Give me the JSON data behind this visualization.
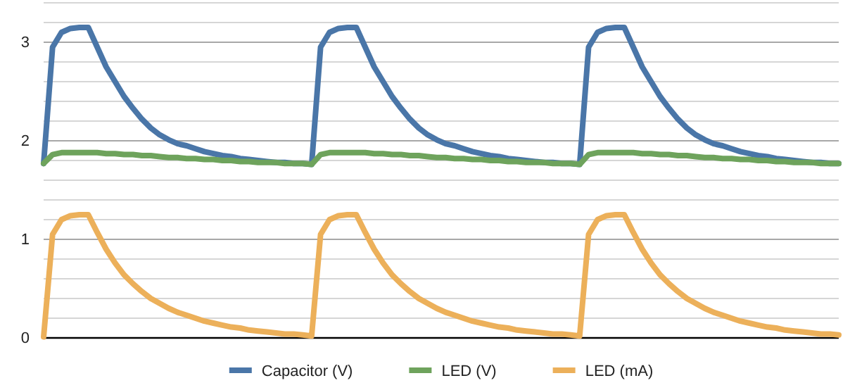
{
  "chart_data": {
    "type": "line",
    "categories": [
      null,
      null,
      null,
      null,
      null,
      null,
      null,
      null,
      null,
      null,
      null,
      null,
      null,
      null,
      null,
      null,
      null,
      null,
      null,
      null,
      null,
      null,
      null,
      null,
      null,
      null,
      null,
      null,
      null,
      null,
      null,
      null,
      null,
      null,
      null,
      null,
      null,
      null,
      null,
      null,
      null,
      null,
      null,
      null,
      null,
      null,
      null,
      null,
      null,
      null,
      null,
      null,
      null,
      null,
      null,
      null,
      null,
      null,
      null,
      null,
      null,
      null,
      null,
      null,
      null,
      null,
      null,
      null,
      null,
      null,
      null,
      null,
      null,
      null,
      null,
      null,
      null,
      null,
      null,
      null,
      null,
      null,
      null,
      null,
      null,
      null,
      null,
      null,
      null,
      null
    ],
    "series": [
      {
        "name": "Capacitor (V)",
        "color": "#4a76a8",
        "values": [
          1.77,
          2.95,
          3.1,
          3.14,
          3.15,
          3.15,
          2.95,
          2.75,
          2.6,
          2.45,
          2.33,
          2.22,
          2.13,
          2.06,
          2.01,
          1.97,
          1.95,
          1.92,
          1.89,
          1.87,
          1.85,
          1.84,
          1.82,
          1.81,
          1.8,
          1.79,
          1.78,
          1.78,
          1.77,
          1.77,
          1.76,
          2.95,
          3.1,
          3.14,
          3.15,
          3.15,
          2.95,
          2.75,
          2.6,
          2.45,
          2.33,
          2.22,
          2.13,
          2.06,
          2.01,
          1.97,
          1.95,
          1.92,
          1.89,
          1.87,
          1.85,
          1.84,
          1.82,
          1.81,
          1.8,
          1.79,
          1.78,
          1.78,
          1.77,
          1.77,
          1.76,
          2.95,
          3.1,
          3.14,
          3.15,
          3.15,
          2.95,
          2.75,
          2.6,
          2.45,
          2.33,
          2.22,
          2.13,
          2.06,
          2.01,
          1.97,
          1.95,
          1.92,
          1.89,
          1.87,
          1.85,
          1.84,
          1.82,
          1.81,
          1.8,
          1.79,
          1.78,
          1.78,
          1.77,
          1.77
        ]
      },
      {
        "name": "LED (V)",
        "color": "#6ea35c",
        "values": [
          1.77,
          1.86,
          1.88,
          1.88,
          1.88,
          1.88,
          1.88,
          1.87,
          1.87,
          1.86,
          1.86,
          1.85,
          1.85,
          1.84,
          1.83,
          1.83,
          1.82,
          1.82,
          1.81,
          1.81,
          1.8,
          1.8,
          1.79,
          1.79,
          1.78,
          1.78,
          1.78,
          1.77,
          1.77,
          1.77,
          1.76,
          1.86,
          1.88,
          1.88,
          1.88,
          1.88,
          1.88,
          1.87,
          1.87,
          1.86,
          1.86,
          1.85,
          1.85,
          1.84,
          1.83,
          1.83,
          1.82,
          1.82,
          1.81,
          1.81,
          1.8,
          1.8,
          1.79,
          1.79,
          1.78,
          1.78,
          1.78,
          1.77,
          1.77,
          1.77,
          1.76,
          1.86,
          1.88,
          1.88,
          1.88,
          1.88,
          1.88,
          1.87,
          1.87,
          1.86,
          1.86,
          1.85,
          1.85,
          1.84,
          1.83,
          1.83,
          1.82,
          1.82,
          1.81,
          1.81,
          1.8,
          1.8,
          1.79,
          1.79,
          1.78,
          1.78,
          1.78,
          1.77,
          1.77,
          1.77
        ]
      },
      {
        "name": "LED (mA)",
        "color": "#ecb05a",
        "values": [
          0.01,
          1.05,
          1.2,
          1.24,
          1.25,
          1.25,
          1.07,
          0.9,
          0.76,
          0.64,
          0.55,
          0.47,
          0.4,
          0.35,
          0.3,
          0.26,
          0.23,
          0.2,
          0.17,
          0.15,
          0.13,
          0.11,
          0.1,
          0.08,
          0.07,
          0.06,
          0.05,
          0.04,
          0.04,
          0.03,
          0.02,
          1.05,
          1.2,
          1.24,
          1.25,
          1.25,
          1.07,
          0.9,
          0.76,
          0.64,
          0.55,
          0.47,
          0.4,
          0.35,
          0.3,
          0.26,
          0.23,
          0.2,
          0.17,
          0.15,
          0.13,
          0.11,
          0.1,
          0.08,
          0.07,
          0.06,
          0.05,
          0.04,
          0.04,
          0.03,
          0.02,
          1.05,
          1.2,
          1.24,
          1.25,
          1.25,
          1.07,
          0.9,
          0.76,
          0.64,
          0.55,
          0.47,
          0.4,
          0.35,
          0.3,
          0.26,
          0.23,
          0.2,
          0.17,
          0.15,
          0.13,
          0.11,
          0.1,
          0.08,
          0.07,
          0.06,
          0.05,
          0.04,
          0.04,
          0.03
        ]
      }
    ],
    "ylim": [
      0,
      3.4
    ],
    "yticks": [
      0,
      {
        "value": 0.2,
        "label": null
      },
      {
        "value": 0.4,
        "label": null
      },
      {
        "value": 0.6,
        "label": null
      },
      {
        "value": 0.8,
        "label": null
      },
      1,
      {
        "value": 1.2,
        "label": null
      },
      {
        "value": 1.4,
        "label": null
      },
      {
        "value": 1.6,
        "label": null
      },
      {
        "value": 1.8,
        "label": null
      },
      2,
      {
        "value": 2.2,
        "label": null
      },
      {
        "value": 2.4,
        "label": null
      },
      {
        "value": 2.6,
        "label": null
      },
      {
        "value": 2.8,
        "label": null
      },
      3,
      {
        "value": 3.2,
        "label": null
      },
      {
        "value": 3.4,
        "label": null
      }
    ],
    "grid": true,
    "legend": "bottom",
    "tick_labels": "y",
    "marker": "none",
    "line_style": "solid"
  }
}
